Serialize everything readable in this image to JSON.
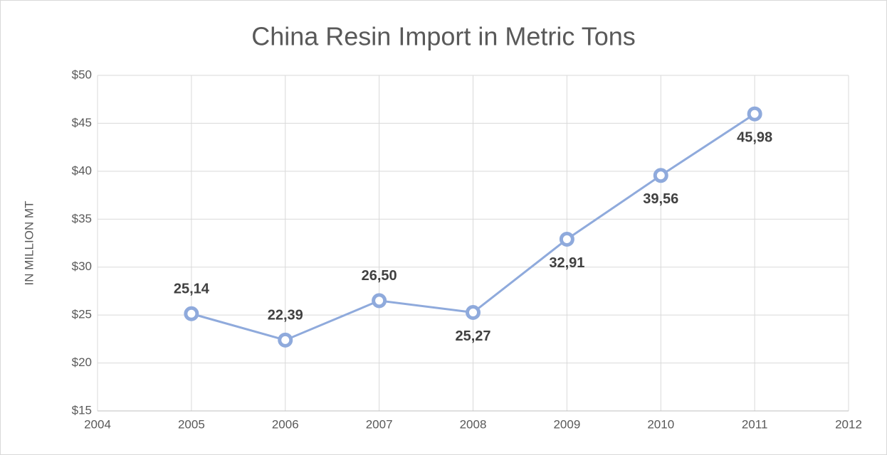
{
  "chart_data": {
    "type": "line",
    "title": "China Resin Import in Metric Tons",
    "ylabel": "IN MILLION MT",
    "x": [
      2005,
      2006,
      2007,
      2008,
      2009,
      2010,
      2011
    ],
    "series": [
      {
        "name": "China Resin Import",
        "color": "#8faadc",
        "values": [
          25.14,
          22.39,
          26.5,
          25.27,
          32.91,
          39.56,
          45.98
        ],
        "value_labels": [
          "25,14",
          "22,39",
          "26,50",
          "25,27",
          "32,91",
          "39,56",
          "45,98"
        ]
      }
    ],
    "xlim": [
      2004,
      2012
    ],
    "xticks": [
      2004,
      2005,
      2006,
      2007,
      2008,
      2009,
      2010,
      2011,
      2012
    ],
    "ylim": [
      15,
      50
    ],
    "yticks": [
      {
        "value": 15,
        "label": "$15"
      },
      {
        "value": 20,
        "label": "$20"
      },
      {
        "value": 25,
        "label": "$25"
      },
      {
        "value": 30,
        "label": "$30"
      },
      {
        "value": 35,
        "label": "$35"
      },
      {
        "value": 40,
        "label": "$40"
      },
      {
        "value": 45,
        "label": "$45"
      },
      {
        "value": 50,
        "label": "$50"
      }
    ],
    "grid": true
  }
}
